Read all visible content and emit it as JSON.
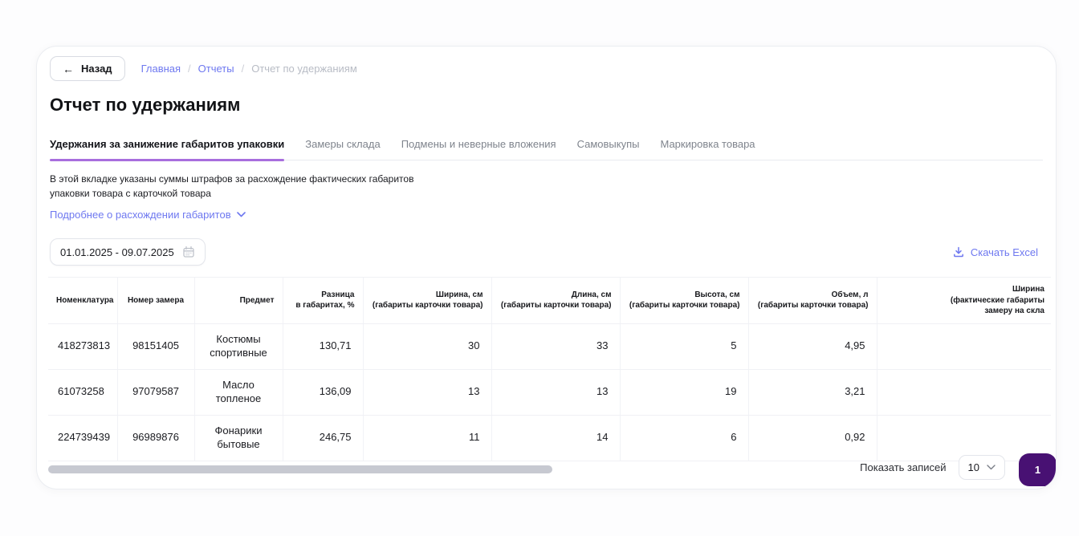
{
  "back_button": {
    "label": "Назад"
  },
  "breadcrumb": {
    "separator": "/",
    "items": [
      {
        "label": "Главная",
        "current": false
      },
      {
        "label": "Отчеты",
        "current": false
      },
      {
        "label": "Отчет по удержаниям",
        "current": true
      }
    ]
  },
  "page_title": "Отчет по удержаниям",
  "tabs": [
    {
      "label": "Удержания за занижение габаритов упаковки",
      "active": true
    },
    {
      "label": "Замеры склада",
      "active": false
    },
    {
      "label": "Подмены и неверные вложения",
      "active": false
    },
    {
      "label": "Самовыкупы",
      "active": false
    },
    {
      "label": "Маркировка товара",
      "active": false
    }
  ],
  "tab_panel": {
    "description": "В этой вкладке указаны суммы штрафов за расхождение фактических габаритов\nупаковки товара с карточкой товара",
    "details_link": "Подробнее о расхождении габаритов"
  },
  "filters": {
    "date_range": "01.01.2025 - 09.07.2025",
    "download_excel": "Скачать Excel"
  },
  "table": {
    "columns": [
      {
        "label": "Номенклатура",
        "align": "left",
        "cell_align": "left"
      },
      {
        "label": "Номер замера",
        "align": "center",
        "cell_align": "center"
      },
      {
        "label": "Предмет",
        "align": "right",
        "cell_align": "center"
      },
      {
        "label": "Разница\nв габаритах, %",
        "align": "right",
        "cell_align": "right"
      },
      {
        "label": "Ширина, см\n(габариты карточки товара)",
        "align": "right",
        "cell_align": "right"
      },
      {
        "label": "Длина, см\n(габариты карточки товара)",
        "align": "right",
        "cell_align": "right"
      },
      {
        "label": "Высота, см\n(габариты карточки товара)",
        "align": "right",
        "cell_align": "right"
      },
      {
        "label": "Объем, л\n(габариты карточки товара)",
        "align": "right",
        "cell_align": "right"
      },
      {
        "label": "Ширина\n(фактические габариты\nзамеру на скла",
        "align": "right",
        "cell_align": "right"
      }
    ],
    "rows": [
      [
        "418273813",
        "98151405",
        "Костюмы спортивные",
        "130,71",
        "30",
        "33",
        "5",
        "4,95",
        ""
      ],
      [
        "61073258",
        "97079587",
        "Масло топленое",
        "136,09",
        "13",
        "13",
        "19",
        "3,21",
        ""
      ],
      [
        "224739439",
        "96989876",
        "Фонарики бытовые",
        "246,75",
        "11",
        "14",
        "6",
        "0,92",
        ""
      ]
    ]
  },
  "pagination": {
    "page_size_label": "Показать записей",
    "page_size": "10",
    "current_page": "1"
  },
  "colors": {
    "accent_link": "#6e78f0",
    "tab_underline": "#a86ede",
    "pagination_active": "#481173",
    "scrollbar_thumb": "#c7c9d1"
  }
}
